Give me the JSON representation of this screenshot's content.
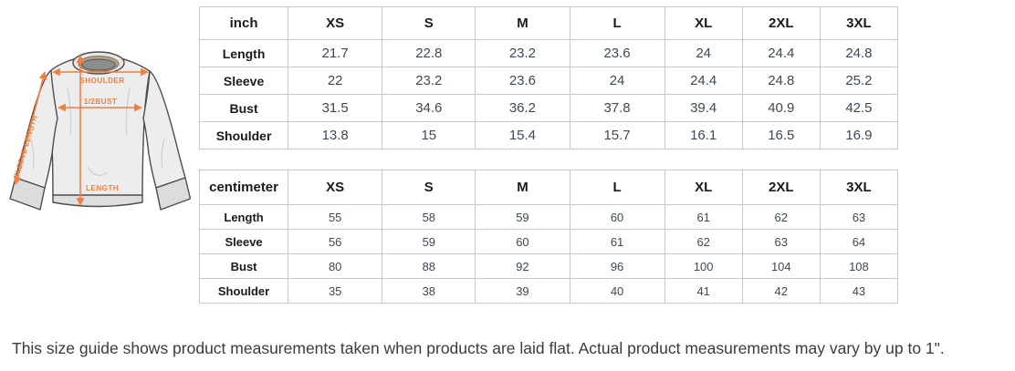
{
  "diagram": {
    "accent_color": "#ef8040",
    "labels": {
      "shoulder": "SHOULDER",
      "half_bust": "1/2BUST",
      "sleeve_length": "SLEEVE LENGTH",
      "length": "LENGTH"
    }
  },
  "tables": [
    {
      "unit": "inch",
      "sizes": [
        "XS",
        "S",
        "M",
        "L",
        "XL",
        "2XL",
        "3XL"
      ],
      "rows": [
        {
          "label": "Length",
          "values": [
            "21.7",
            "22.8",
            "23.2",
            "23.6",
            "24",
            "24.4",
            "24.8"
          ]
        },
        {
          "label": "Sleeve",
          "values": [
            "22",
            "23.2",
            "23.6",
            "24",
            "24.4",
            "24.8",
            "25.2"
          ]
        },
        {
          "label": "Bust",
          "values": [
            "31.5",
            "34.6",
            "36.2",
            "37.8",
            "39.4",
            "40.9",
            "42.5"
          ]
        },
        {
          "label": "Shoulder",
          "values": [
            "13.8",
            "15",
            "15.4",
            "15.7",
            "16.1",
            "16.5",
            "16.9"
          ]
        }
      ]
    },
    {
      "unit": "centimeter",
      "sizes": [
        "XS",
        "S",
        "M",
        "L",
        "XL",
        "2XL",
        "3XL"
      ],
      "rows": [
        {
          "label": "Length",
          "values": [
            "55",
            "58",
            "59",
            "60",
            "61",
            "62",
            "63"
          ]
        },
        {
          "label": "Sleeve",
          "values": [
            "56",
            "59",
            "60",
            "61",
            "62",
            "63",
            "64"
          ]
        },
        {
          "label": "Bust",
          "values": [
            "80",
            "88",
            "92",
            "96",
            "100",
            "104",
            "108"
          ]
        },
        {
          "label": "Shoulder",
          "values": [
            "35",
            "38",
            "39",
            "40",
            "41",
            "42",
            "43"
          ]
        }
      ]
    }
  ],
  "note": "This size guide shows product measurements taken when products are laid flat. Actual product measurements may vary by up to 1\"."
}
